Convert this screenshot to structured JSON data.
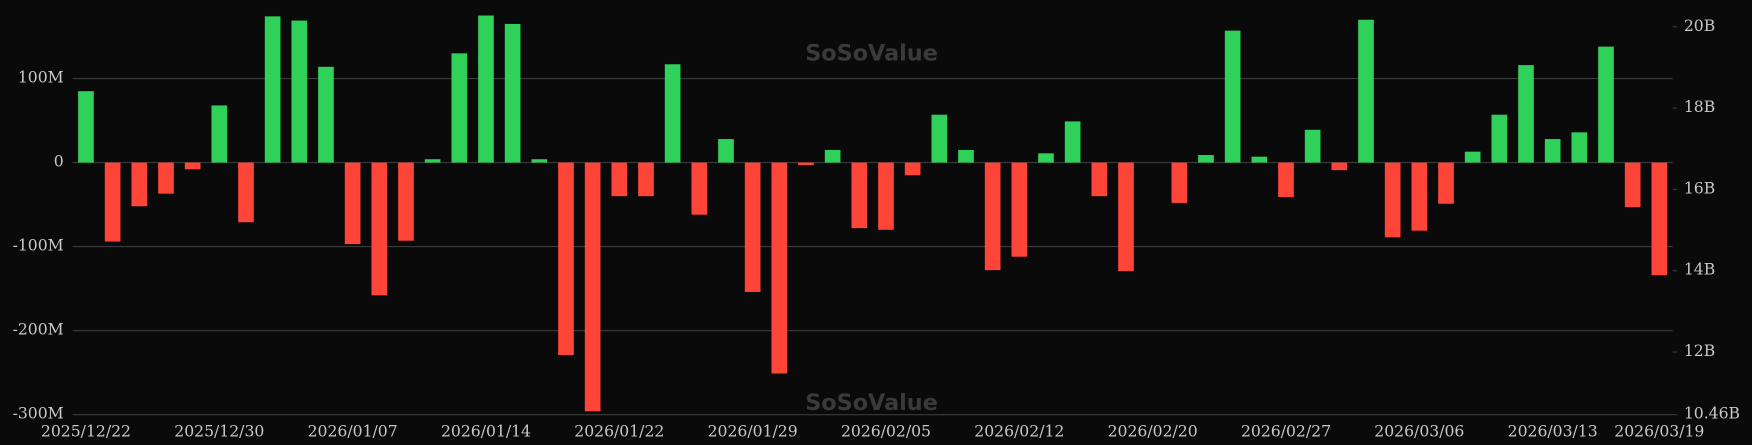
{
  "chart_data": {
    "type": "bar",
    "watermark": "SoSoValue",
    "categories": [
      "2025/12/22",
      null,
      null,
      null,
      null,
      "2025/12/30",
      null,
      null,
      null,
      null,
      "2026/01/07",
      null,
      null,
      null,
      null,
      "2026/01/14",
      null,
      null,
      null,
      null,
      "2026/01/22",
      null,
      null,
      null,
      null,
      "2026/01/29",
      null,
      null,
      null,
      null,
      "2026/02/05",
      null,
      null,
      null,
      null,
      "2026/02/12",
      null,
      null,
      null,
      null,
      "2026/02/20",
      null,
      null,
      null,
      null,
      "2026/02/27",
      null,
      null,
      null,
      null,
      "2026/03/06",
      null,
      null,
      null,
      null,
      "2026/03/13",
      null,
      null,
      null,
      "2026/03/19"
    ],
    "values": [
      85,
      -94,
      -52,
      -37,
      -8,
      68,
      -71,
      174,
      169,
      114,
      -97,
      -158,
      -93,
      4,
      130,
      175,
      165,
      4,
      -229,
      -296,
      -40,
      -40,
      117,
      -62,
      28,
      -154,
      -251,
      -3,
      15,
      -78,
      -80,
      -15,
      57,
      15,
      -128,
      -112,
      11,
      49,
      -40,
      -129,
      0,
      -48,
      9,
      157,
      7,
      -41,
      39,
      -9,
      170,
      -89,
      -81,
      -49,
      13,
      57,
      116,
      28,
      36,
      138,
      -53,
      -134
    ],
    "positive_color": "#2fd158",
    "negative_color": "#ff4438",
    "ylim": [
      -300,
      180
    ],
    "yticks": [
      {
        "value": -300,
        "label": "-300M"
      },
      {
        "value": -200,
        "label": "-200M"
      },
      {
        "value": -100,
        "label": "-100M"
      },
      0,
      {
        "value": 100,
        "label": "100M"
      }
    ],
    "y2lim": [
      10.46,
      20.38
    ],
    "y2ticks": [
      {
        "value": 10.46,
        "label": "10.46B"
      },
      {
        "value": 12,
        "label": "12B"
      },
      {
        "value": 14,
        "label": "14B"
      },
      {
        "value": 16,
        "label": "16B"
      },
      {
        "value": 18,
        "label": "18B"
      },
      {
        "value": 20,
        "label": "20B"
      }
    ],
    "grid": true
  }
}
